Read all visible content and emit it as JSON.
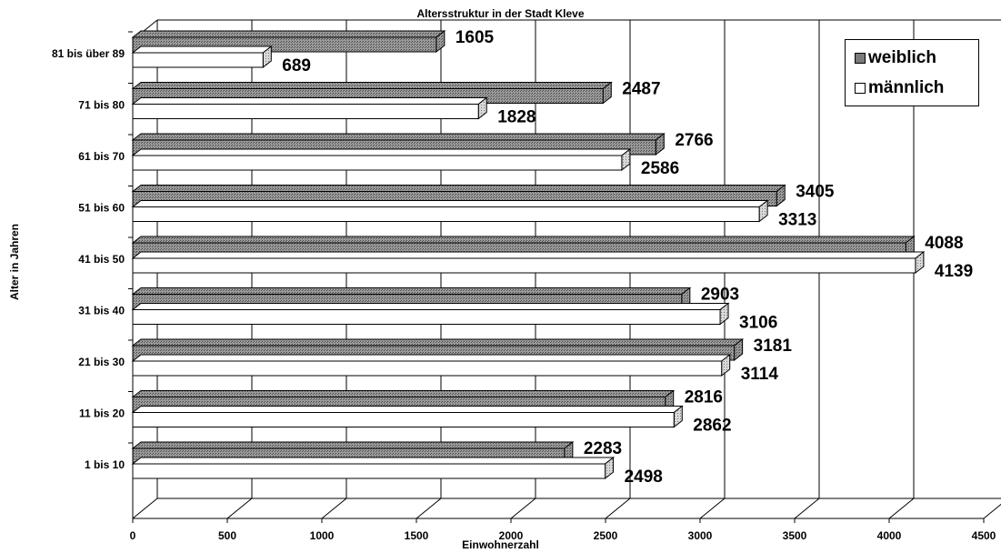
{
  "chart_data": {
    "type": "bar",
    "orientation": "horizontal",
    "style": "3d",
    "title": "Altersstruktur in der Stadt Kleve",
    "xlabel": "Einwohnerzahl",
    "ylabel": "Alter in Jahren",
    "xlim": [
      0,
      4500
    ],
    "xticks": [
      0,
      500,
      1000,
      1500,
      2000,
      2500,
      3000,
      3500,
      4000,
      4500
    ],
    "grid": "vertical",
    "legend_position": "top-right",
    "categories": [
      "81 bis über 89",
      "71 bis 80",
      "61 bis 70",
      "51 bis 60",
      "41 bis 50",
      "31 bis 40",
      "21 bis 30",
      "11 bis 20",
      "1 bis 10"
    ],
    "series": [
      {
        "name": "weiblich",
        "color": "#7a7a7a",
        "values": [
          1605,
          2487,
          2766,
          3405,
          4088,
          2903,
          3181,
          2816,
          2283
        ]
      },
      {
        "name": "männlich",
        "color": "#ffffff",
        "values": [
          689,
          1828,
          2586,
          3313,
          4139,
          3106,
          3114,
          2862,
          2498
        ]
      }
    ]
  }
}
